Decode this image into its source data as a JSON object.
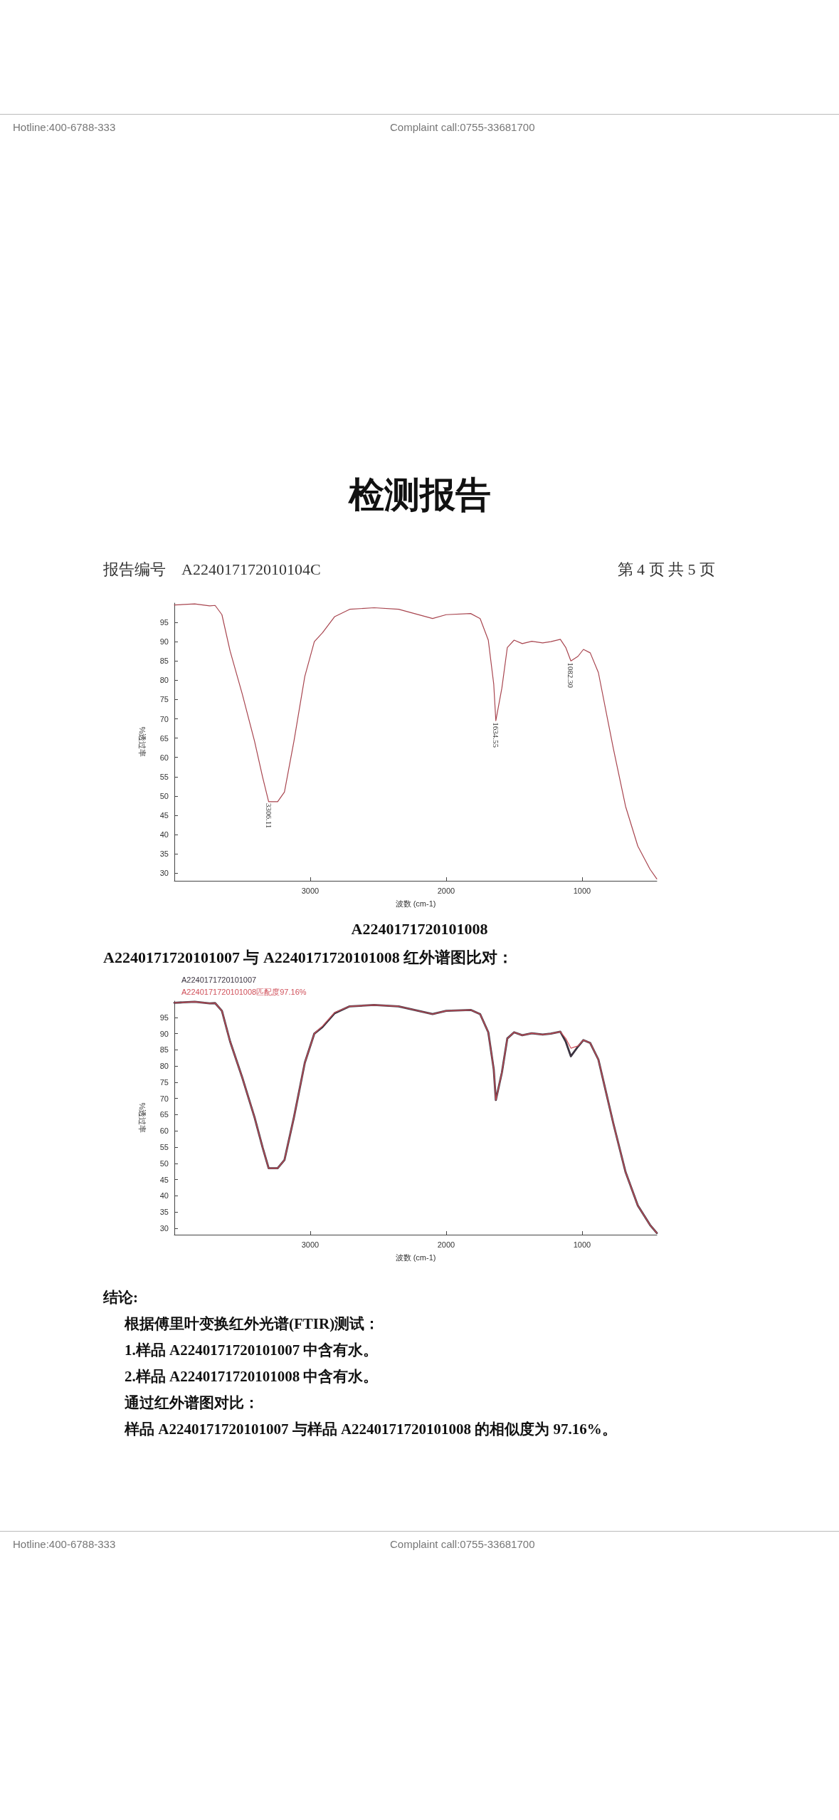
{
  "chart_data": [
    {
      "type": "line",
      "title": "检测报告",
      "xlabel": "波数 (cm-1)",
      "ylabel": "%透过率",
      "xlim": [
        4000,
        450
      ],
      "xticks": [
        3000,
        2000,
        1000
      ],
      "ylim": [
        28,
        100
      ],
      "yticks": [
        30,
        35,
        40,
        45,
        50,
        55,
        60,
        65,
        70,
        75,
        80,
        85,
        90,
        95
      ],
      "grid": false,
      "legend": false,
      "marker": "none",
      "line_style": "solid",
      "color": "#a8454f",
      "x": [
        4000,
        3850,
        3740,
        3700,
        3650,
        3590,
        3500,
        3410,
        3350,
        3306.11,
        3240,
        3190,
        3120,
        3040,
        2970,
        2910,
        2820,
        2710,
        2530,
        2350,
        2100,
        2000,
        1820,
        1750,
        1690,
        1650,
        1634.55,
        1590,
        1550,
        1500,
        1440,
        1370,
        1290,
        1230,
        1160,
        1120,
        1082.3,
        1030,
        990,
        940,
        880,
        770,
        680,
        590,
        500,
        450
      ],
      "values": [
        99.5,
        99.8,
        99.3,
        99.4,
        97,
        87.6,
        76.4,
        64.2,
        54.8,
        48.5,
        48.5,
        51,
        64.2,
        81,
        90,
        92.3,
        96.5,
        98.4,
        98.8,
        98.4,
        96,
        97,
        97.3,
        96,
        90.4,
        79,
        69.5,
        78,
        88.5,
        90.4,
        89.5,
        90.1,
        89.7,
        90,
        90.6,
        88.5,
        85,
        86.2,
        88,
        87.1,
        82,
        62.3,
        47.3,
        37,
        31,
        28.5
      ],
      "annotations": [
        "Hotline:400-6788-333",
        "Complaint call:0755-33681700",
        "报告编号　A224017172010104C",
        "第 4 页  共 5 页",
        "A2240171720101008",
        {
          "text": "3306.11",
          "x": 3306.11,
          "y": 48.5
        },
        {
          "text": "1634.55",
          "x": 1634.55,
          "y": 69.5
        },
        {
          "text": "1082.30",
          "x": 1082.3,
          "y": 85
        }
      ]
    },
    {
      "type": "line",
      "title": "A2240171720101007 与 A2240171720101008 红外谱图比对：",
      "xlabel": "波数 (cm-1)",
      "ylabel": "%透过率",
      "xlim": [
        4000,
        450
      ],
      "xticks": [
        3000,
        2000,
        1000
      ],
      "ylim": [
        28,
        100
      ],
      "yticks": [
        30,
        35,
        40,
        45,
        50,
        55,
        60,
        65,
        70,
        75,
        80,
        85,
        90,
        95
      ],
      "grid": false,
      "legend": "top left",
      "marker": "none",
      "line_style": "solid",
      "x": [
        4000,
        3850,
        3740,
        3700,
        3650,
        3590,
        3500,
        3410,
        3350,
        3306.11,
        3240,
        3190,
        3120,
        3040,
        2970,
        2910,
        2820,
        2710,
        2530,
        2350,
        2100,
        2000,
        1820,
        1750,
        1690,
        1650,
        1634.55,
        1590,
        1550,
        1500,
        1440,
        1370,
        1290,
        1230,
        1160,
        1120,
        1082.3,
        1030,
        990,
        940,
        880,
        770,
        680,
        590,
        500,
        450
      ],
      "series": [
        {
          "name": "A2240171720101007",
          "color": "#3b3340",
          "values": [
            99.5,
            99.8,
            99.3,
            99.4,
            97,
            87.6,
            76.4,
            64.2,
            54.8,
            48.5,
            48.5,
            51,
            64.2,
            81,
            90,
            92,
            96.3,
            98.4,
            98.8,
            98.4,
            96,
            97,
            97.3,
            96,
            90.4,
            79,
            69.5,
            78,
            88.5,
            90.4,
            89.5,
            90.1,
            89.7,
            90,
            90.6,
            87.5,
            83,
            86,
            88,
            87.1,
            82,
            62.3,
            47.3,
            37,
            31,
            28.5
          ]
        },
        {
          "name": "A2240171720101008匹配度97.16%",
          "color": "#d0505a",
          "values": [
            99.5,
            99.8,
            99.3,
            99.4,
            97,
            87.6,
            76.4,
            64.2,
            54.8,
            48.5,
            48.5,
            51,
            64.2,
            81,
            90,
            92.3,
            96.5,
            98.4,
            98.8,
            98.4,
            96,
            97,
            97.3,
            96,
            90.4,
            79,
            69.5,
            78,
            88.5,
            90.4,
            89.5,
            90.1,
            89.7,
            90,
            90.6,
            88.5,
            85.5,
            86.2,
            88,
            87.1,
            82,
            62.3,
            47.3,
            37,
            31,
            28.5
          ]
        }
      ],
      "annotations": [
        "结论:",
        "根据傅里叶变换红外光谱(FTIR)测试：",
        "1.样品 A2240171720101007 中含有水。",
        "2.样品 A2240171720101008 中含有水。",
        "通过红外谱图对比：",
        "样品 A2240171720101007 与样品 A2240171720101008 的相似度为 97.16%。",
        "Hotline:400-6788-333",
        "Complaint call:0755-33681700"
      ]
    }
  ]
}
